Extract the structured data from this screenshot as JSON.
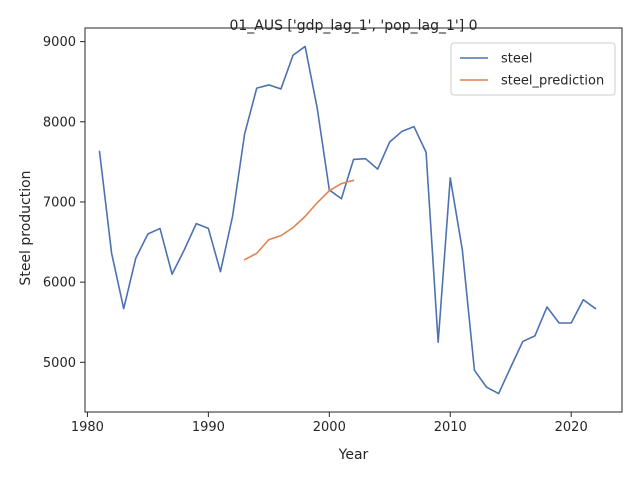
{
  "chart_data": {
    "type": "line",
    "title": "01_AUS ['gdp_lag_1', 'pop_lag_1'] 0",
    "xlabel": "Year",
    "ylabel": "Steel production",
    "xlim": [
      1979.8,
      2024.2
    ],
    "ylim": [
      4380,
      9170
    ],
    "xticks": [
      1980,
      1990,
      2000,
      2010,
      2020
    ],
    "yticks": [
      5000,
      6000,
      7000,
      8000,
      9000
    ],
    "grid": false,
    "legend_position": "top-right",
    "series": [
      {
        "name": "steel",
        "color": "#4c72b0",
        "x": [
          1981,
          1982,
          1983,
          1984,
          1985,
          1986,
          1987,
          1988,
          1989,
          1990,
          1991,
          1992,
          1993,
          1994,
          1995,
          1996,
          1997,
          1998,
          1999,
          2000,
          2001,
          2002,
          2003,
          2004,
          2005,
          2006,
          2007,
          2008,
          2009,
          2010,
          2011,
          2012,
          2013,
          2014,
          2015,
          2016,
          2017,
          2018,
          2019,
          2020,
          2021,
          2022
        ],
        "y": [
          7630,
          6360,
          5670,
          6300,
          6600,
          6670,
          6100,
          6400,
          6730,
          6670,
          6130,
          6820,
          7850,
          8420,
          8460,
          8410,
          8830,
          8940,
          8170,
          7150,
          7040,
          7530,
          7540,
          7410,
          7750,
          7880,
          7940,
          7620,
          5250,
          7300,
          6400,
          4900,
          4690,
          4610,
          4940,
          5260,
          5330,
          5690,
          5490,
          5490,
          5780,
          5670
        ]
      },
      {
        "name": "steel_prediction",
        "color": "#dd8452",
        "x": [
          1993,
          1994,
          1995,
          1996,
          1997,
          1998,
          1999,
          2000,
          2001,
          2002
        ],
        "y": [
          6280,
          6360,
          6530,
          6580,
          6680,
          6820,
          6990,
          7140,
          7230,
          7270
        ]
      }
    ]
  }
}
